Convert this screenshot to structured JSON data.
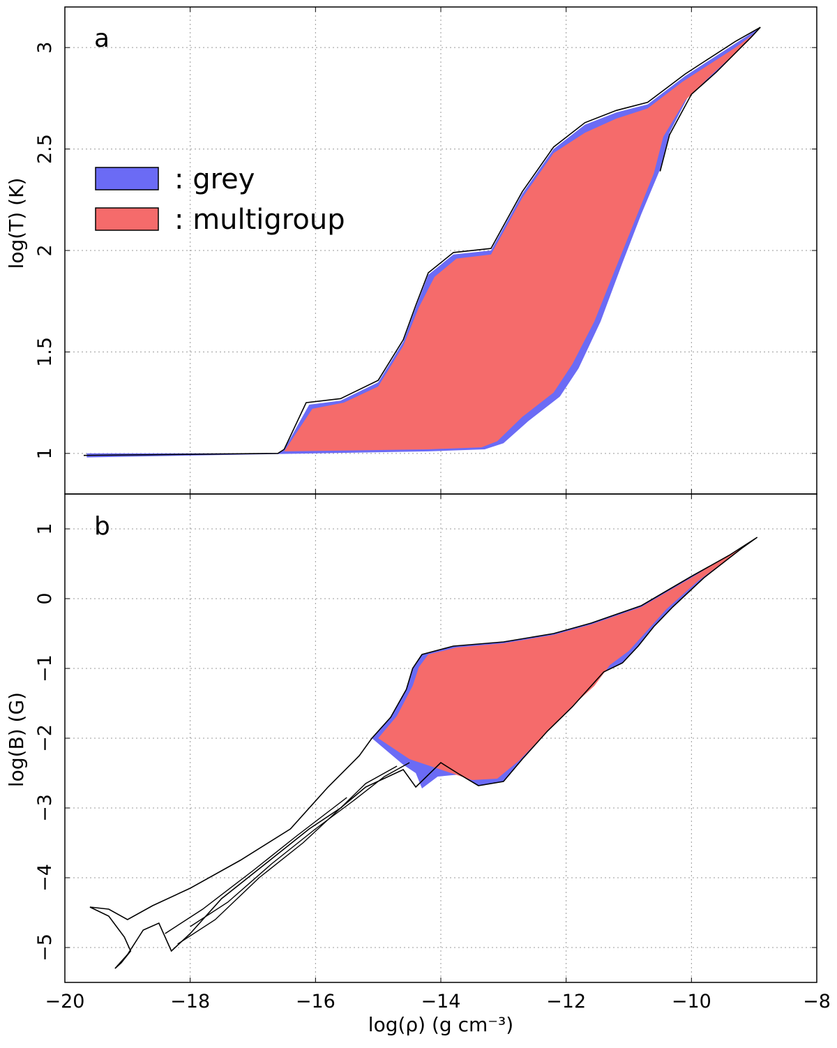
{
  "colors": {
    "grey": "#6B6BF5",
    "multigroup": "#F56B6B",
    "contour": "#000000"
  },
  "legend": {
    "placement": "upper-left of panel a",
    "items": [
      {
        "label": ": grey",
        "color_key": "grey"
      },
      {
        "label": ": multigroup",
        "color_key": "multigroup"
      }
    ]
  },
  "axes": {
    "xlabel": "log(ρ) (g cm⁻³)",
    "xlim": [
      -20,
      -8
    ],
    "xticks": [
      -20,
      -18,
      -16,
      -14,
      -12,
      -10,
      -8
    ],
    "xtick_labels": [
      "−20",
      "−18",
      "−16",
      "−14",
      "−12",
      "−10",
      "−8"
    ]
  },
  "chart_data": [
    {
      "panel": "a",
      "type": "area",
      "label": "a",
      "ylabel": "log(T) (K)",
      "ylim": [
        0.8,
        3.2
      ],
      "yticks": [
        1,
        1.5,
        2,
        2.5,
        3
      ],
      "ytick_labels": [
        "1",
        "1.5",
        "2",
        "2.5",
        "3"
      ],
      "grid": true,
      "series": [
        {
          "name": ": grey",
          "color_key": "grey",
          "outline": [
            [
              -19.65,
              1.0
            ],
            [
              -16.6,
              1.0
            ],
            [
              -16.5,
              1.02
            ],
            [
              -16.1,
              1.24
            ],
            [
              -15.6,
              1.26
            ],
            [
              -15.0,
              1.35
            ],
            [
              -14.6,
              1.55
            ],
            [
              -14.4,
              1.72
            ],
            [
              -14.2,
              1.88
            ],
            [
              -13.8,
              1.98
            ],
            [
              -13.2,
              2.0
            ],
            [
              -12.7,
              2.28
            ],
            [
              -12.2,
              2.5
            ],
            [
              -11.7,
              2.62
            ],
            [
              -11.2,
              2.68
            ],
            [
              -10.7,
              2.72
            ],
            [
              -10.1,
              2.86
            ],
            [
              -9.8,
              2.92
            ],
            [
              -9.3,
              3.02
            ],
            [
              -8.9,
              3.1
            ],
            [
              -9.05,
              3.05
            ],
            [
              -9.6,
              2.88
            ],
            [
              -10.05,
              2.76
            ],
            [
              -10.35,
              2.58
            ],
            [
              -10.5,
              2.4
            ],
            [
              -10.8,
              2.18
            ],
            [
              -11.1,
              1.94
            ],
            [
              -11.45,
              1.65
            ],
            [
              -11.8,
              1.42
            ],
            [
              -12.1,
              1.28
            ],
            [
              -12.6,
              1.16
            ],
            [
              -13.0,
              1.05
            ],
            [
              -13.3,
              1.02
            ],
            [
              -14.2,
              1.01
            ],
            [
              -19.65,
              0.98
            ]
          ]
        },
        {
          "name": ": multigroup",
          "color_key": "multigroup",
          "outline": [
            [
              -16.5,
              1.01
            ],
            [
              -16.05,
              1.22
            ],
            [
              -15.55,
              1.25
            ],
            [
              -15.0,
              1.33
            ],
            [
              -14.6,
              1.53
            ],
            [
              -14.35,
              1.72
            ],
            [
              -14.1,
              1.87
            ],
            [
              -13.75,
              1.96
            ],
            [
              -13.2,
              1.98
            ],
            [
              -12.7,
              2.26
            ],
            [
              -12.2,
              2.48
            ],
            [
              -11.7,
              2.58
            ],
            [
              -11.2,
              2.65
            ],
            [
              -10.7,
              2.7
            ],
            [
              -10.15,
              2.83
            ],
            [
              -9.8,
              2.9
            ],
            [
              -9.3,
              3.0
            ],
            [
              -8.95,
              3.08
            ],
            [
              -9.1,
              3.03
            ],
            [
              -9.7,
              2.86
            ],
            [
              -10.1,
              2.74
            ],
            [
              -10.45,
              2.56
            ],
            [
              -10.6,
              2.38
            ],
            [
              -10.9,
              2.15
            ],
            [
              -11.2,
              1.92
            ],
            [
              -11.55,
              1.65
            ],
            [
              -11.9,
              1.44
            ],
            [
              -12.2,
              1.3
            ],
            [
              -12.7,
              1.18
            ],
            [
              -13.1,
              1.06
            ],
            [
              -13.35,
              1.03
            ],
            [
              -14.2,
              1.02
            ],
            [
              -16.5,
              1.01
            ]
          ]
        }
      ],
      "contour_outline": [
        [
          -19.7,
          0.99
        ],
        [
          -16.6,
          1.0
        ],
        [
          -16.5,
          1.02
        ],
        [
          -16.15,
          1.25
        ],
        [
          -15.6,
          1.27
        ],
        [
          -15.0,
          1.36
        ],
        [
          -14.6,
          1.56
        ],
        [
          -14.4,
          1.73
        ],
        [
          -14.2,
          1.89
        ],
        [
          -13.8,
          1.99
        ],
        [
          -13.2,
          2.01
        ],
        [
          -12.7,
          2.29
        ],
        [
          -12.2,
          2.51
        ],
        [
          -11.7,
          2.63
        ],
        [
          -11.2,
          2.69
        ],
        [
          -10.7,
          2.73
        ],
        [
          -10.1,
          2.87
        ],
        [
          -9.8,
          2.93
        ],
        [
          -9.3,
          3.03
        ],
        [
          -8.9,
          3.1
        ],
        [
          -9.05,
          3.05
        ],
        [
          -9.6,
          2.88
        ],
        [
          -10.0,
          2.77
        ],
        [
          -10.35,
          2.57
        ],
        [
          -10.5,
          2.39
        ]
      ]
    },
    {
      "panel": "b",
      "type": "area",
      "label": "b",
      "ylabel": "log(B) (G)",
      "ylim": [
        -5.5,
        1.5
      ],
      "yticks": [
        -5,
        -4,
        -3,
        -2,
        -1,
        0,
        1
      ],
      "ytick_labels": [
        "−5",
        "−4",
        "−3",
        "−2",
        "−1",
        "0",
        "1"
      ],
      "grid": true,
      "series": [
        {
          "name": ": grey",
          "color_key": "grey",
          "outline": [
            [
              -15.1,
              -2.0
            ],
            [
              -14.8,
              -1.7
            ],
            [
              -14.55,
              -1.3
            ],
            [
              -14.45,
              -1.0
            ],
            [
              -14.3,
              -0.8
            ],
            [
              -13.8,
              -0.68
            ],
            [
              -13.0,
              -0.62
            ],
            [
              -12.2,
              -0.5
            ],
            [
              -11.6,
              -0.35
            ],
            [
              -10.8,
              -0.1
            ],
            [
              -10.0,
              0.32
            ],
            [
              -9.4,
              0.62
            ],
            [
              -8.95,
              0.88
            ],
            [
              -9.2,
              0.72
            ],
            [
              -9.8,
              0.3
            ],
            [
              -10.3,
              -0.12
            ],
            [
              -10.6,
              -0.4
            ],
            [
              -10.85,
              -0.68
            ],
            [
              -11.1,
              -0.92
            ],
            [
              -11.4,
              -1.05
            ],
            [
              -11.6,
              -1.25
            ],
            [
              -11.9,
              -1.55
            ],
            [
              -12.3,
              -1.9
            ],
            [
              -12.7,
              -2.3
            ],
            [
              -13.0,
              -2.62
            ],
            [
              -13.4,
              -2.68
            ],
            [
              -13.7,
              -2.52
            ],
            [
              -14.05,
              -2.55
            ],
            [
              -14.3,
              -2.72
            ],
            [
              -14.4,
              -2.5
            ],
            [
              -14.6,
              -2.38
            ],
            [
              -15.1,
              -2.0
            ]
          ]
        },
        {
          "name": ": multigroup",
          "color_key": "multigroup",
          "outline": [
            [
              -15.0,
              -2.0
            ],
            [
              -14.7,
              -1.68
            ],
            [
              -14.45,
              -1.25
            ],
            [
              -14.35,
              -0.98
            ],
            [
              -14.2,
              -0.8
            ],
            [
              -13.75,
              -0.7
            ],
            [
              -13.0,
              -0.64
            ],
            [
              -12.2,
              -0.52
            ],
            [
              -11.6,
              -0.37
            ],
            [
              -10.8,
              -0.12
            ],
            [
              -10.0,
              0.3
            ],
            [
              -9.45,
              0.6
            ],
            [
              -9.0,
              0.85
            ],
            [
              -9.3,
              0.65
            ],
            [
              -9.9,
              0.25
            ],
            [
              -10.4,
              -0.15
            ],
            [
              -10.7,
              -0.45
            ],
            [
              -11.0,
              -0.75
            ],
            [
              -11.3,
              -0.95
            ],
            [
              -11.55,
              -1.25
            ],
            [
              -11.95,
              -1.58
            ],
            [
              -12.35,
              -1.95
            ],
            [
              -12.75,
              -2.32
            ],
            [
              -13.1,
              -2.58
            ],
            [
              -13.5,
              -2.6
            ],
            [
              -14.0,
              -2.45
            ],
            [
              -14.5,
              -2.3
            ],
            [
              -15.0,
              -2.0
            ]
          ]
        }
      ],
      "contour_outline": [
        [
          -19.6,
          -4.42
        ],
        [
          -19.3,
          -4.45
        ],
        [
          -19.0,
          -4.6
        ],
        [
          -18.6,
          -4.4
        ],
        [
          -18.0,
          -4.15
        ],
        [
          -17.2,
          -3.75
        ],
        [
          -16.4,
          -3.3
        ],
        [
          -15.8,
          -2.7
        ],
        [
          -15.3,
          -2.25
        ],
        [
          -15.1,
          -2.0
        ],
        [
          -14.8,
          -1.7
        ],
        [
          -14.55,
          -1.3
        ],
        [
          -14.45,
          -1.0
        ],
        [
          -14.3,
          -0.8
        ],
        [
          -13.8,
          -0.68
        ],
        [
          -13.0,
          -0.62
        ],
        [
          -12.2,
          -0.5
        ],
        [
          -11.6,
          -0.35
        ],
        [
          -10.8,
          -0.1
        ],
        [
          -10.0,
          0.32
        ],
        [
          -9.4,
          0.62
        ],
        [
          -8.95,
          0.88
        ],
        [
          -9.2,
          0.72
        ],
        [
          -9.8,
          0.3
        ],
        [
          -10.3,
          -0.12
        ],
        [
          -10.6,
          -0.4
        ],
        [
          -10.85,
          -0.68
        ],
        [
          -11.1,
          -0.92
        ],
        [
          -11.4,
          -1.05
        ],
        [
          -11.6,
          -1.25
        ],
        [
          -11.9,
          -1.55
        ],
        [
          -12.3,
          -1.9
        ],
        [
          -12.7,
          -2.3
        ],
        [
          -13.0,
          -2.62
        ],
        [
          -13.4,
          -2.68
        ],
        [
          -13.7,
          -2.52
        ],
        [
          -14.0,
          -2.35
        ],
        [
          -14.4,
          -2.7
        ],
        [
          -14.6,
          -2.45
        ],
        [
          -15.2,
          -2.7
        ],
        [
          -15.6,
          -3.0
        ],
        [
          -16.1,
          -3.3
        ],
        [
          -16.8,
          -3.8
        ],
        [
          -17.5,
          -4.3
        ],
        [
          -18.0,
          -4.8
        ],
        [
          -18.3,
          -5.05
        ],
        [
          -18.5,
          -4.65
        ],
        [
          -18.75,
          -4.75
        ],
        [
          -19.0,
          -5.1
        ],
        [
          -19.2,
          -5.3
        ],
        [
          -19.1,
          -5.22
        ],
        [
          -18.95,
          -5.05
        ],
        [
          -19.05,
          -4.85
        ],
        [
          -19.3,
          -4.55
        ],
        [
          -19.6,
          -4.42
        ]
      ],
      "inner_contours": [
        [
          [
            -18.2,
            -4.95
          ],
          [
            -17.6,
            -4.6
          ],
          [
            -16.9,
            -4.0
          ],
          [
            -16.2,
            -3.5
          ],
          [
            -15.6,
            -3.0
          ],
          [
            -15.2,
            -2.65
          ],
          [
            -14.7,
            -2.4
          ]
        ],
        [
          [
            -18.0,
            -4.7
          ],
          [
            -17.4,
            -4.35
          ],
          [
            -16.7,
            -3.8
          ],
          [
            -16.0,
            -3.3
          ],
          [
            -15.4,
            -2.9
          ],
          [
            -14.9,
            -2.55
          ],
          [
            -14.5,
            -2.35
          ]
        ],
        [
          [
            -18.4,
            -4.8
          ],
          [
            -17.8,
            -4.45
          ],
          [
            -17.0,
            -3.9
          ],
          [
            -16.3,
            -3.4
          ],
          [
            -15.5,
            -2.85
          ]
        ]
      ]
    }
  ]
}
